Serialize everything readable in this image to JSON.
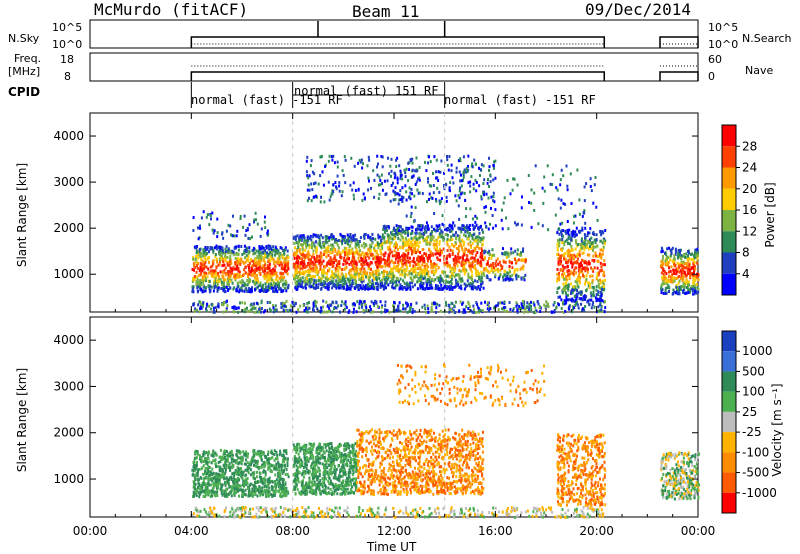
{
  "header": {
    "title": "McMurdo (fitACF)",
    "beam": "Beam 11",
    "date": "09/Dec/2014"
  },
  "panels": {
    "nsky_label": "N.Sky",
    "nsearch_label": "N.Search",
    "nsky_ticks": [
      "10^5",
      "10^0"
    ],
    "freq_label_1": "Freq.",
    "freq_label_2": "[MHz]",
    "freq_ticks": [
      "18",
      "8"
    ],
    "nave_label": "Nave",
    "nave_ticks": [
      "60",
      "0"
    ],
    "cpid_label": "CPID",
    "cpid_segments": [
      "normal (fast) -151 RF",
      "normal (fast) 151 RF",
      "normal (fast) -151 RF"
    ]
  },
  "colorbars": {
    "power": {
      "label": "Power [dB]",
      "ticks": [
        "28",
        "24",
        "20",
        "16",
        "12",
        "8",
        "4"
      ],
      "colors": [
        "#ff0000",
        "#ff4000",
        "#ff9900",
        "#ffcc00",
        "#7cb342",
        "#2e8b57",
        "#1f3fbf",
        "#0000ff"
      ]
    },
    "velocity": {
      "label": "Velocity [m s⁻¹]",
      "ticks": [
        "1000",
        "500",
        "100",
        "25",
        "-25",
        "-100",
        "-500",
        "-1000"
      ],
      "colors": [
        "#1a3fbf",
        "#3a6fd8",
        "#2e8b57",
        "#4caf50",
        "#bdbdbd",
        "#ffb300",
        "#ff8c00",
        "#ff5a00",
        "#ff0000"
      ]
    }
  },
  "chart_data": [
    {
      "type": "heatmap",
      "title": "Power",
      "ylabel": "Slant Range [km]",
      "xlabel": "Time UT",
      "ylim": [
        180,
        4500
      ],
      "yticks": [
        1000,
        2000,
        3000,
        4000
      ],
      "xlim": [
        0,
        24
      ],
      "xticks": [
        "00:00",
        "04:00",
        "08:00",
        "12:00",
        "16:00",
        "20:00",
        "00:00"
      ],
      "series": [
        {
          "t0": 4.0,
          "t1": 7.8,
          "r0": 700,
          "r1": 1700,
          "level": "mixed"
        },
        {
          "t0": 8.0,
          "t1": 11.5,
          "r0": 700,
          "r1": 1800,
          "level": "mixed"
        },
        {
          "t0": 11.5,
          "t1": 15.5,
          "r0": 700,
          "r1": 2000,
          "level": "mixed"
        },
        {
          "t0": 18.5,
          "t1": 20.3,
          "r0": 500,
          "r1": 2000,
          "level": "mixed"
        },
        {
          "t0": 22.5,
          "t1": 24.0,
          "r0": 600,
          "r1": 1600,
          "level": "mixed"
        }
      ]
    },
    {
      "type": "heatmap",
      "title": "Velocity",
      "ylabel": "Slant Range [km]",
      "xlabel": "Time UT",
      "ylim": [
        180,
        4500
      ],
      "yticks": [
        1000,
        2000,
        3000,
        4000
      ],
      "xlim": [
        0,
        24
      ],
      "xticks": [
        "00:00",
        "04:00",
        "08:00",
        "12:00",
        "16:00",
        "20:00",
        "00:00"
      ]
    }
  ],
  "axes": {
    "ylabel": "Slant Range [km]",
    "yticks": [
      "4000",
      "3000",
      "2000",
      "1000"
    ],
    "xticks": [
      "00:00",
      "04:00",
      "08:00",
      "12:00",
      "16:00",
      "20:00",
      "00:00"
    ],
    "xlabel": "Time UT"
  }
}
